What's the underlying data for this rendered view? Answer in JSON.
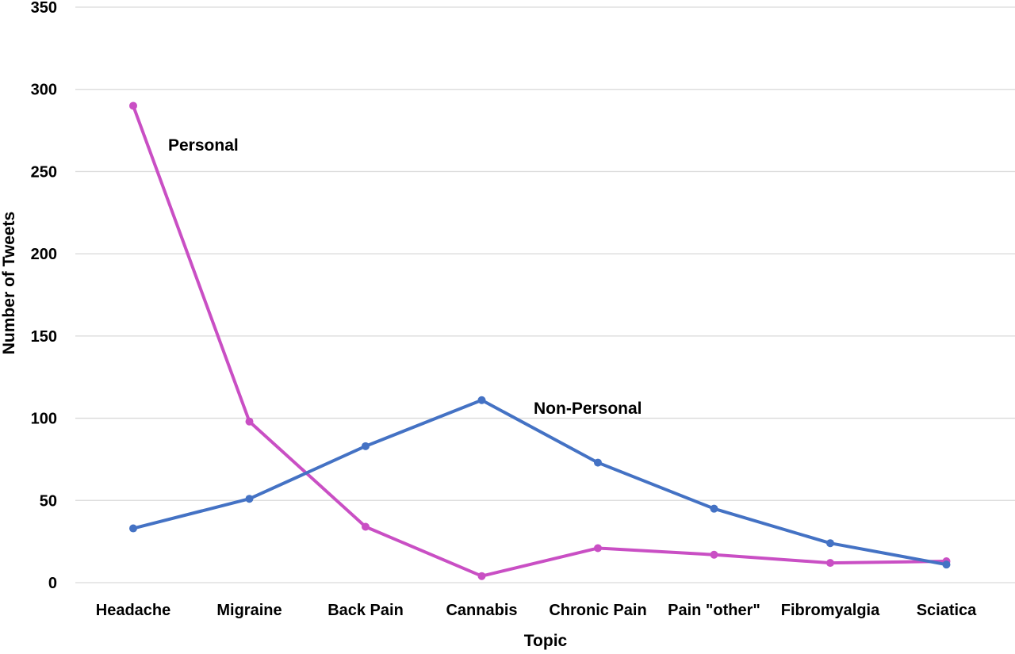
{
  "chart_data": {
    "type": "line",
    "title": "",
    "xlabel": "Topic",
    "ylabel": "Number of Tweets",
    "categories": [
      "Headache",
      "Migraine",
      "Back Pain",
      "Cannabis",
      "Chronic Pain",
      "Pain \"other\"",
      "Fibromyalgia",
      "Sciatica"
    ],
    "ylim": [
      0,
      350
    ],
    "yticks": [
      "0",
      "50",
      "100",
      "150",
      "200",
      "250",
      "300",
      "350"
    ],
    "grid": true,
    "legend": "none (labels placed on chart)",
    "series": [
      {
        "name": "Personal",
        "color": "#c94fc4",
        "values": [
          290,
          98,
          34,
          4,
          21,
          17,
          12,
          13
        ]
      },
      {
        "name": "Non-Personal",
        "color": "#4472c4",
        "values": [
          33,
          51,
          83,
          111,
          73,
          45,
          24,
          11
        ]
      }
    ]
  }
}
